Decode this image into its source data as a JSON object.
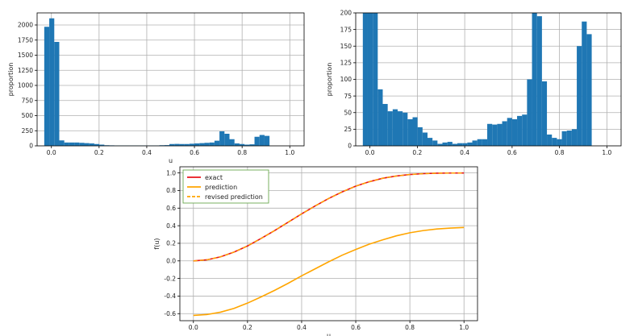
{
  "chart_data": [
    {
      "type": "bar",
      "subtype": "histogram",
      "xlabel": "u",
      "ylabel": "proportion",
      "xlim": [
        -0.06,
        1.06
      ],
      "ylim": [
        0,
        2200
      ],
      "xticks": [
        0.0,
        0.2,
        0.4,
        0.6,
        0.8,
        1.0
      ],
      "xtick_labels": [
        "0.0",
        "0.2",
        "0.4",
        "0.6",
        "0.8",
        "1.0"
      ],
      "yticks": [
        0,
        250,
        500,
        750,
        1000,
        1250,
        1500,
        1750,
        2000
      ],
      "ytick_labels": [
        "0",
        "250",
        "500",
        "750",
        "1000",
        "1250",
        "1500",
        "1750",
        "2000"
      ],
      "grid": true,
      "bar_color": "#1f77b4",
      "bin_width": 0.021,
      "bin_start": -0.03,
      "values": [
        1970,
        2110,
        1720,
        90,
        55,
        55,
        55,
        50,
        45,
        40,
        30,
        20,
        10,
        8,
        5,
        5,
        5,
        5,
        5,
        5,
        5,
        5,
        5,
        10,
        12,
        30,
        32,
        30,
        30,
        35,
        40,
        45,
        50,
        55,
        85,
        240,
        200,
        110,
        40,
        30,
        20,
        25,
        150,
        180,
        165
      ]
    },
    {
      "type": "bar",
      "subtype": "histogram",
      "xlabel": "",
      "ylabel": "proportion",
      "xlim": [
        -0.06,
        1.06
      ],
      "ylim": [
        0,
        200
      ],
      "xticks": [
        0.0,
        0.2,
        0.4,
        0.6,
        0.8,
        1.0
      ],
      "xtick_labels": [
        "0.0",
        "0.2",
        "0.4",
        "0.6",
        "0.8",
        "1.0"
      ],
      "yticks": [
        0,
        25,
        50,
        75,
        100,
        125,
        150,
        175,
        200
      ],
      "ytick_labels": [
        "0",
        "25",
        "50",
        "75",
        "100",
        "125",
        "150",
        "175",
        "200"
      ],
      "grid": true,
      "bar_color": "#1f77b4",
      "bin_width": 0.021,
      "bin_start": -0.03,
      "values": [
        200,
        200,
        200,
        85,
        63,
        52,
        55,
        52,
        50,
        40,
        43,
        28,
        20,
        12,
        8,
        3,
        5,
        6,
        3,
        4,
        4,
        5,
        8,
        10,
        10,
        33,
        32,
        33,
        37,
        42,
        40,
        45,
        47,
        100,
        200,
        195,
        97,
        17,
        12,
        10,
        22,
        23,
        25,
        150,
        187,
        168
      ]
    },
    {
      "type": "line",
      "xlabel": "u",
      "ylabel": "f(u)",
      "xlim": [
        -0.05,
        1.05
      ],
      "ylim": [
        -0.68,
        1.07
      ],
      "xticks": [
        0.0,
        0.2,
        0.4,
        0.6,
        0.8,
        1.0
      ],
      "xtick_labels": [
        "0.0",
        "0.2",
        "0.4",
        "0.6",
        "0.8",
        "1.0"
      ],
      "yticks": [
        -0.6,
        -0.4,
        -0.2,
        0.0,
        0.2,
        0.4,
        0.6,
        0.8,
        1.0
      ],
      "ytick_labels": [
        "-0.6",
        "-0.4",
        "-0.2",
        "0.0",
        "0.2",
        "0.4",
        "0.6",
        "0.8",
        "1.0"
      ],
      "grid": true,
      "legend_position": "top-left",
      "x": [
        0.0,
        0.05,
        0.1,
        0.15,
        0.2,
        0.25,
        0.3,
        0.35,
        0.4,
        0.45,
        0.5,
        0.55,
        0.6,
        0.65,
        0.7,
        0.75,
        0.8,
        0.85,
        0.9,
        0.95,
        1.0
      ],
      "series": [
        {
          "name": "exact",
          "color": "#e8141c",
          "style": "solid",
          "values": [
            0.0,
            0.012,
            0.046,
            0.1,
            0.17,
            0.255,
            0.345,
            0.44,
            0.535,
            0.625,
            0.71,
            0.785,
            0.85,
            0.9,
            0.94,
            0.965,
            0.982,
            0.992,
            0.997,
            0.999,
            1.0
          ]
        },
        {
          "name": "prediction",
          "color": "#ffa500",
          "style": "solid",
          "values": [
            -0.62,
            -0.61,
            -0.583,
            -0.54,
            -0.48,
            -0.41,
            -0.335,
            -0.255,
            -0.17,
            -0.09,
            -0.01,
            0.065,
            0.13,
            0.19,
            0.24,
            0.285,
            0.32,
            0.345,
            0.363,
            0.373,
            0.38
          ]
        },
        {
          "name": "revised prediction",
          "color": "#ffa500",
          "style": "dashed",
          "values": [
            0.0,
            0.012,
            0.046,
            0.1,
            0.17,
            0.255,
            0.345,
            0.44,
            0.535,
            0.625,
            0.71,
            0.785,
            0.85,
            0.9,
            0.94,
            0.965,
            0.982,
            0.992,
            0.997,
            0.999,
            1.0
          ]
        }
      ]
    }
  ]
}
